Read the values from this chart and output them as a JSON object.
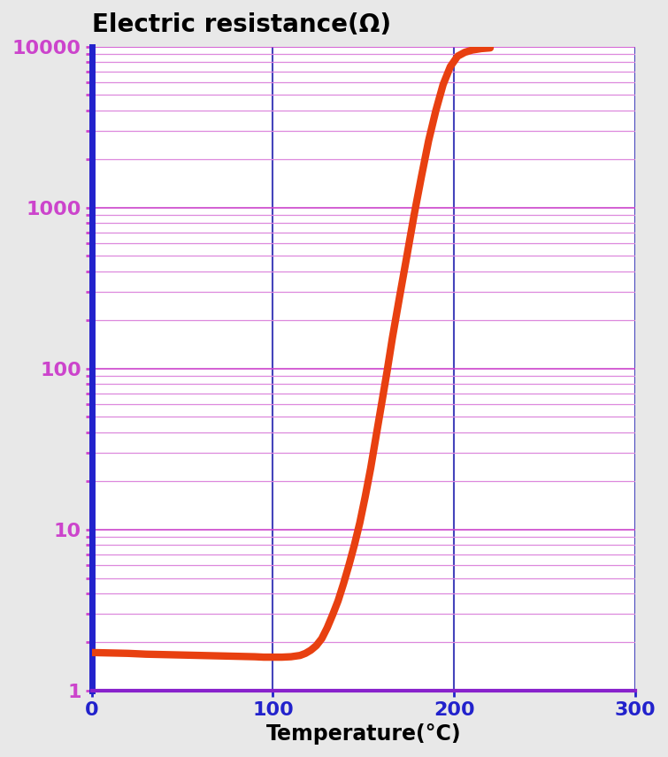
{
  "title": "Electric resistance(Ω)",
  "xlabel": "Temperature(°C)",
  "xlim": [
    0,
    300
  ],
  "ylim": [
    1,
    10000
  ],
  "x_ticks": [
    0,
    100,
    200,
    300
  ],
  "y_ticks": [
    1,
    10,
    100,
    1000,
    10000
  ],
  "fig_background_color": "#e8e8e8",
  "plot_background_color": "#ffffff",
  "left_spine_color": "#2222cc",
  "bottom_spine_color": "#8822cc",
  "vgrid_color": "#4444bb",
  "hgrid_major_color": "#cc44cc",
  "hgrid_minor_color": "#dd88dd",
  "curve_color": "#e84010",
  "curve_linewidth": 6,
  "title_fontsize": 20,
  "axis_label_fontsize": 17,
  "tick_fontsize": 16,
  "curve_x": [
    0,
    10,
    20,
    30,
    40,
    50,
    60,
    70,
    80,
    90,
    95,
    100,
    105,
    110,
    115,
    118,
    121,
    124,
    127,
    130,
    133,
    136,
    139,
    142,
    145,
    148,
    151,
    154,
    157,
    160,
    163,
    166,
    170,
    174,
    178,
    182,
    186,
    190,
    194,
    198,
    202,
    206,
    210,
    215,
    220
  ],
  "curve_y": [
    1.72,
    1.71,
    1.7,
    1.68,
    1.67,
    1.66,
    1.65,
    1.64,
    1.63,
    1.62,
    1.61,
    1.61,
    1.61,
    1.62,
    1.65,
    1.7,
    1.78,
    1.9,
    2.1,
    2.45,
    2.95,
    3.6,
    4.6,
    6.0,
    8.0,
    11,
    16,
    24,
    38,
    60,
    95,
    155,
    280,
    500,
    900,
    1550,
    2600,
    4000,
    5800,
    7500,
    8700,
    9200,
    9500,
    9700,
    9800
  ]
}
